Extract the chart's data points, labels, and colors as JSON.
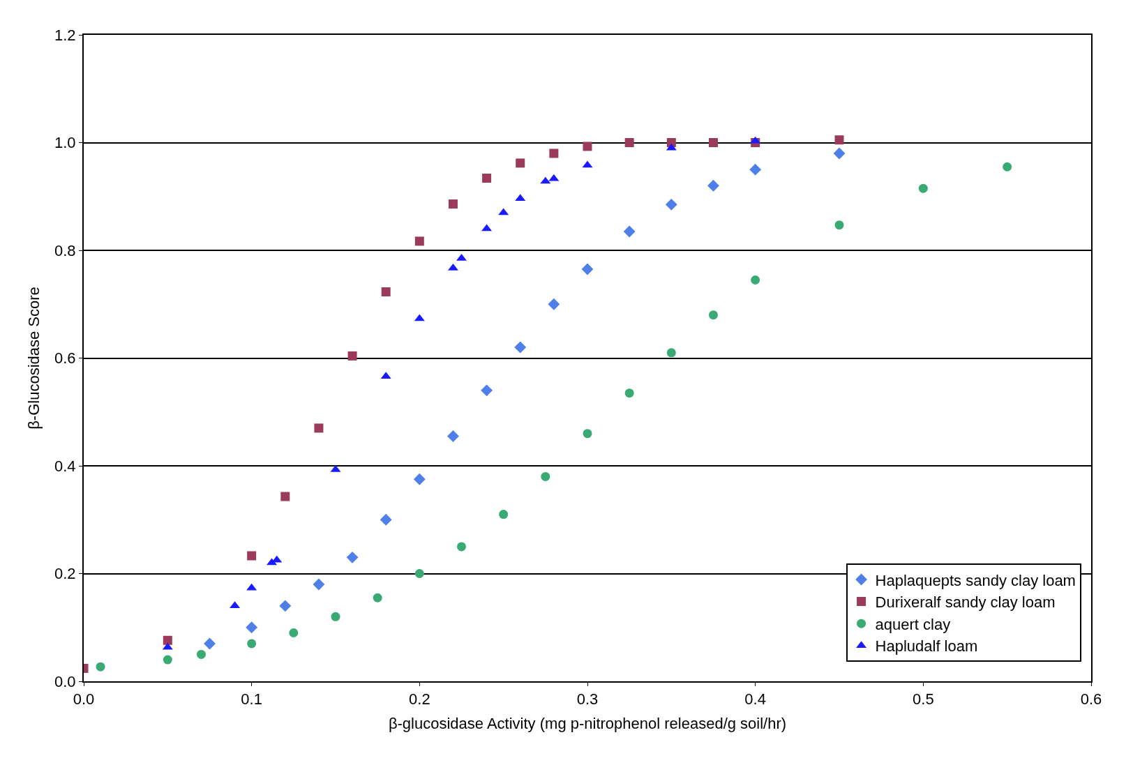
{
  "chart_data": {
    "type": "scatter",
    "xlabel": "β-glucosidase Activity (mg p-nitrophenol released/g soil/hr)",
    "ylabel": "β-Glucosidase Score",
    "xlim": [
      0,
      0.6
    ],
    "xticks": [
      {
        "value": 0,
        "label": "0.0"
      },
      0.1,
      0.2,
      0.3,
      0.4,
      0.5,
      0.6
    ],
    "ylim": [
      0,
      1.2
    ],
    "yticks": [
      {
        "value": 0,
        "label": "0.0"
      },
      0.2,
      0.4,
      0.6,
      0.8,
      {
        "value": 1,
        "label": "1.0"
      },
      1.2
    ],
    "grid": "y",
    "legend": "bottom right",
    "series": [
      {
        "name": "Haplaquepts sandy clay loam",
        "color": "#4f7fe8",
        "marker": "diamond",
        "x": [
          0.075,
          0.1,
          0.12,
          0.14,
          0.16,
          0.18,
          0.2,
          0.22,
          0.24,
          0.26,
          0.28,
          0.3,
          0.325,
          0.35,
          0.375,
          0.4,
          0.45
        ],
        "values": [
          0.07,
          0.1,
          0.14,
          0.18,
          0.23,
          0.3,
          0.375,
          0.455,
          0.54,
          0.62,
          0.7,
          0.765,
          0.835,
          0.885,
          0.92,
          0.95,
          0.98
        ]
      },
      {
        "name": "Durixeralf sandy clay loam",
        "color": "#9b3b5a",
        "marker": "square",
        "x": [
          0.0,
          0.05,
          0.1,
          0.12,
          0.14,
          0.16,
          0.18,
          0.2,
          0.22,
          0.24,
          0.26,
          0.28,
          0.3,
          0.325,
          0.35,
          0.375,
          0.4,
          0.45
        ],
        "values": [
          0.024,
          0.076,
          0.233,
          0.343,
          0.47,
          0.604,
          0.723,
          0.817,
          0.886,
          0.934,
          0.962,
          0.98,
          0.993,
          1.0,
          1.0,
          1.0,
          1.0,
          1.005
        ]
      },
      {
        "name": "aquert clay",
        "color": "#3aaa74",
        "marker": "circle",
        "x": [
          0.01,
          0.05,
          0.07,
          0.1,
          0.125,
          0.15,
          0.175,
          0.2,
          0.225,
          0.25,
          0.275,
          0.3,
          0.325,
          0.35,
          0.375,
          0.4,
          0.45,
          0.5,
          0.55
        ],
        "values": [
          0.027,
          0.04,
          0.05,
          0.07,
          0.09,
          0.12,
          0.155,
          0.2,
          0.25,
          0.31,
          0.38,
          0.46,
          0.535,
          0.61,
          0.68,
          0.745,
          0.847,
          0.915,
          0.955
        ]
      },
      {
        "name": "Hapludalf loam",
        "color": "#1a1aff",
        "marker": "triangle",
        "x": [
          0.05,
          0.09,
          0.1,
          0.112,
          0.115,
          0.15,
          0.18,
          0.2,
          0.22,
          0.225,
          0.24,
          0.25,
          0.26,
          0.275,
          0.28,
          0.3,
          0.35,
          0.4
        ],
        "values": [
          0.063,
          0.14,
          0.173,
          0.22,
          0.225,
          0.393,
          0.566,
          0.673,
          0.767,
          0.785,
          0.84,
          0.87,
          0.896,
          0.928,
          0.933,
          0.958,
          0.99,
          1.003
        ]
      }
    ]
  }
}
